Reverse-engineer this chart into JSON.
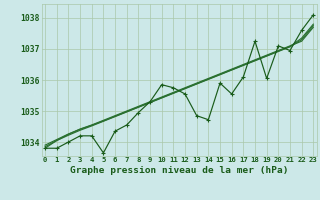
{
  "x": [
    0,
    1,
    2,
    3,
    4,
    5,
    6,
    7,
    8,
    9,
    10,
    11,
    12,
    13,
    14,
    15,
    16,
    17,
    18,
    19,
    20,
    21,
    22,
    23
  ],
  "y_main": [
    1033.8,
    1033.8,
    1034.0,
    1034.2,
    1034.2,
    1033.65,
    1034.35,
    1034.55,
    1034.95,
    1035.3,
    1035.85,
    1035.75,
    1035.55,
    1034.85,
    1034.72,
    1035.9,
    1035.55,
    1036.1,
    1037.25,
    1036.05,
    1037.1,
    1036.95,
    1037.6,
    1038.1
  ],
  "y_trend1": [
    1033.8,
    1034.05,
    1034.25,
    1034.42,
    1034.55,
    1034.7,
    1034.85,
    1035.0,
    1035.15,
    1035.3,
    1035.45,
    1035.6,
    1035.75,
    1035.9,
    1036.05,
    1036.2,
    1036.35,
    1036.5,
    1036.65,
    1036.8,
    1036.95,
    1037.1,
    1037.25,
    1037.7
  ],
  "y_trend2": [
    1033.85,
    1034.05,
    1034.22,
    1034.38,
    1034.52,
    1034.67,
    1034.82,
    1034.97,
    1035.12,
    1035.27,
    1035.42,
    1035.57,
    1035.72,
    1035.87,
    1036.02,
    1036.17,
    1036.32,
    1036.47,
    1036.62,
    1036.77,
    1036.92,
    1037.07,
    1037.3,
    1037.75
  ],
  "y_trend3": [
    1033.9,
    1034.08,
    1034.26,
    1034.41,
    1034.54,
    1034.68,
    1034.83,
    1034.98,
    1035.13,
    1035.28,
    1035.43,
    1035.58,
    1035.73,
    1035.88,
    1036.03,
    1036.18,
    1036.33,
    1036.48,
    1036.63,
    1036.78,
    1036.93,
    1037.08,
    1037.35,
    1037.8
  ],
  "bg_color": "#cce8e8",
  "grid_color": "#aac8aa",
  "line_color": "#1a5c1a",
  "trend_color": "#2a7030",
  "tick_color": "#1a5c1a",
  "xlabel_label": "Graphe pression niveau de la mer (hPa)",
  "yticks": [
    1034,
    1035,
    1036,
    1037,
    1038
  ],
  "xticks": [
    0,
    1,
    2,
    3,
    4,
    5,
    6,
    7,
    8,
    9,
    10,
    11,
    12,
    13,
    14,
    15,
    16,
    17,
    18,
    19,
    20,
    21,
    22,
    23
  ],
  "ylim": [
    1033.55,
    1038.45
  ],
  "xlim": [
    -0.3,
    23.3
  ],
  "fontsize_xlabel": 6.8,
  "fontsize_yticks": 5.8,
  "fontsize_xticks": 5.2,
  "marker_size": 2.5,
  "line_width": 0.85
}
